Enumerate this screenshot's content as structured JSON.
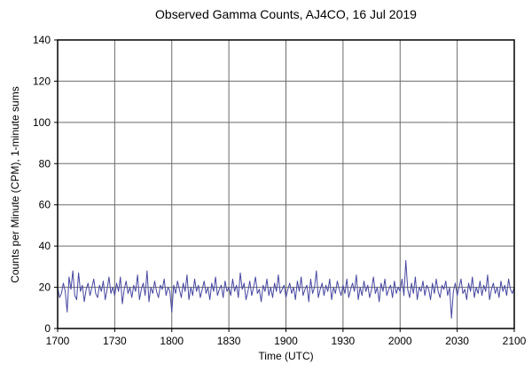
{
  "chart_data": {
    "type": "line",
    "title": "Observed Gamma Counts, AJ4CO, 16 Jul 2019",
    "xlabel": "Time (UTC)",
    "ylabel": "Counts per Minute (CPM), 1-minute sums",
    "xlim": [
      0,
      240
    ],
    "ylim": [
      0,
      140
    ],
    "grid": true,
    "legend": "none",
    "xticks": [
      {
        "pos": 0,
        "label": "1700"
      },
      {
        "pos": 30,
        "label": "1730"
      },
      {
        "pos": 60,
        "label": "1800"
      },
      {
        "pos": 90,
        "label": "1830"
      },
      {
        "pos": 120,
        "label": "1900"
      },
      {
        "pos": 150,
        "label": "1930"
      },
      {
        "pos": 180,
        "label": "2000"
      },
      {
        "pos": 210,
        "label": "2030"
      },
      {
        "pos": 240,
        "label": "2100"
      }
    ],
    "yticks": [
      0,
      20,
      40,
      60,
      80,
      100,
      120,
      140
    ],
    "colors": {
      "line": "#4646a0",
      "grid": "#6b6b6b",
      "frame": "#000000",
      "background": "#ffffff"
    },
    "series": [
      {
        "name": "gamma_counts_cpm",
        "x_step_minutes": 1,
        "values": [
          20,
          15,
          17,
          22,
          18,
          8,
          25,
          19,
          28,
          16,
          14,
          27,
          18,
          21,
          13,
          19,
          22,
          16,
          20,
          24,
          17,
          15,
          21,
          18,
          23,
          14,
          19,
          25,
          17,
          20,
          16,
          22,
          18,
          25,
          12,
          19,
          23,
          17,
          20,
          15,
          21,
          18,
          26,
          14,
          19,
          22,
          16,
          28,
          13,
          20,
          17,
          23,
          18,
          15,
          21,
          19,
          24,
          16,
          20,
          18,
          8,
          21,
          17,
          23,
          19,
          15,
          22,
          18,
          26,
          14,
          20,
          16,
          24,
          18,
          21,
          15,
          19,
          23,
          17,
          20,
          14,
          22,
          18,
          25,
          16,
          19,
          21,
          15,
          23,
          18,
          20,
          16,
          24,
          18,
          21,
          15,
          27,
          19,
          22,
          14,
          18,
          23,
          16,
          20,
          25,
          17,
          19,
          13,
          21,
          18,
          24,
          16,
          20,
          15,
          22,
          18,
          26,
          17,
          19,
          21,
          15,
          19,
          22,
          17,
          20,
          14,
          23,
          18,
          25,
          16,
          19,
          21,
          13,
          24,
          17,
          20,
          28,
          15,
          19,
          22,
          16,
          21,
          18,
          24,
          14,
          20,
          17,
          23,
          19,
          16,
          21,
          17,
          24,
          15,
          19,
          22,
          18,
          26,
          14,
          20,
          16,
          23,
          18,
          21,
          15,
          19,
          25,
          17,
          20,
          13,
          22,
          18,
          24,
          16,
          19,
          21,
          15,
          23,
          17,
          20,
          18,
          24,
          16,
          33,
          19,
          15,
          22,
          17,
          25,
          14,
          20,
          18,
          23,
          16,
          21,
          19,
          14,
          22,
          17,
          24,
          18,
          15,
          21,
          19,
          23,
          16,
          20,
          5,
          18,
          22,
          16,
          20,
          24,
          17,
          19,
          14,
          22,
          18,
          25,
          15,
          20,
          17,
          23,
          16,
          21,
          18,
          26,
          14,
          19,
          22,
          17,
          20,
          15,
          23,
          18,
          21,
          16,
          24,
          19,
          17,
          20
        ]
      }
    ]
  }
}
